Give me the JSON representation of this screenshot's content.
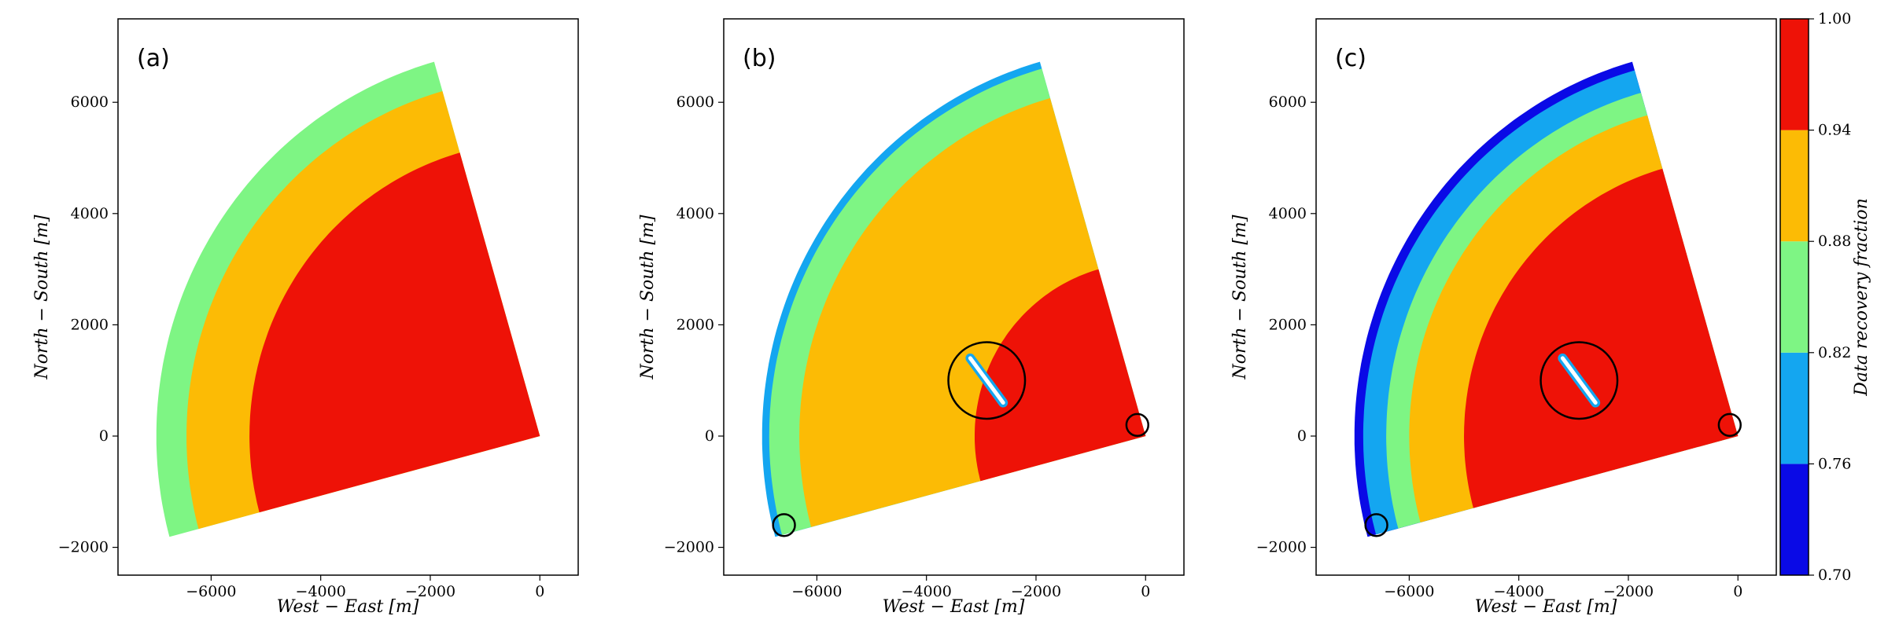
{
  "chart_data": [
    {
      "type": "heatmap",
      "panel_label": "(a)",
      "xlabel": "West − East [m]",
      "ylabel": "North − South [m]",
      "xlim": [
        -7700,
        700
      ],
      "ylim": [
        -2500,
        7500
      ],
      "xticks": [
        -6000,
        -4000,
        -2000,
        0
      ],
      "yticks": [
        -2000,
        0,
        2000,
        4000,
        6000
      ],
      "sector": {
        "range_max": 7000,
        "azimuth_from_deg": 255,
        "azimuth_to_deg": 344
      },
      "bands": [
        {
          "level": "0.82-0.88",
          "width_m": 550
        },
        {
          "level": "0.88-0.94",
          "width_m": 1150
        },
        {
          "level": "0.94-1.00",
          "width_m": null
        }
      ],
      "markers": []
    },
    {
      "type": "heatmap",
      "panel_label": "(b)",
      "xlabel": "West − East [m]",
      "ylabel": "North − South [m]",
      "xlim": [
        -7700,
        700
      ],
      "ylim": [
        -2500,
        7500
      ],
      "xticks": [
        -6000,
        -4000,
        -2000,
        0
      ],
      "yticks": [
        -2000,
        0,
        2000,
        4000,
        6000
      ],
      "sector": {
        "range_max": 7000,
        "azimuth_from_deg": 255,
        "azimuth_to_deg": 344
      },
      "bands": [
        {
          "level": "0.76-0.82",
          "width_m": 130
        },
        {
          "level": "0.82-0.88",
          "width_m": 550
        },
        {
          "level": "0.88-0.94",
          "width_m": 3200
        },
        {
          "level": "0.94-1.00",
          "width_m": null
        }
      ],
      "wake_streak": {
        "x_from": -3200,
        "y_from": 1400,
        "x_to": -2600,
        "y_to": 600
      },
      "markers": [
        {
          "x": -2900,
          "y": 1000,
          "radius_m": 700
        },
        {
          "x": -150,
          "y": 200,
          "radius_m": 200
        },
        {
          "x": -6600,
          "y": -1600,
          "radius_m": 200
        }
      ]
    },
    {
      "type": "heatmap",
      "panel_label": "(c)",
      "xlabel": "West − East [m]",
      "ylabel": "North − South [m]",
      "xlim": [
        -7700,
        700
      ],
      "ylim": [
        -2500,
        7500
      ],
      "xticks": [
        -6000,
        -4000,
        -2000,
        0
      ],
      "yticks": [
        -2000,
        0,
        2000,
        4000,
        6000
      ],
      "sector": {
        "range_max": 7000,
        "azimuth_from_deg": 255,
        "azimuth_to_deg": 344
      },
      "bands": [
        {
          "level": "0.70-0.76",
          "width_m": 160
        },
        {
          "level": "0.76-0.82",
          "width_m": 420
        },
        {
          "level": "0.82-0.88",
          "width_m": 420
        },
        {
          "level": "0.88-0.94",
          "width_m": 1000
        },
        {
          "level": "0.94-1.00",
          "width_m": null
        }
      ],
      "wake_streak": {
        "x_from": -3200,
        "y_from": 1400,
        "x_to": -2600,
        "y_to": 600
      },
      "markers": [
        {
          "x": -2900,
          "y": 1000,
          "radius_m": 700
        },
        {
          "x": -150,
          "y": 200,
          "radius_m": 200
        },
        {
          "x": -6600,
          "y": -1600,
          "radius_m": 200
        }
      ]
    }
  ],
  "colorbar": {
    "label": "Data recovery fraction",
    "ticks": [
      "0.70",
      "0.76",
      "0.82",
      "0.88",
      "0.94",
      "1.00"
    ],
    "levels": [
      {
        "name": "0.70-0.76",
        "color": "#0a0ae6"
      },
      {
        "name": "0.76-0.82",
        "color": "#14a6f0"
      },
      {
        "name": "0.82-0.88",
        "color": "#7ef584"
      },
      {
        "name": "0.88-0.94",
        "color": "#fcbb05"
      },
      {
        "name": "0.94-1.00",
        "color": "#ee1207"
      }
    ]
  }
}
